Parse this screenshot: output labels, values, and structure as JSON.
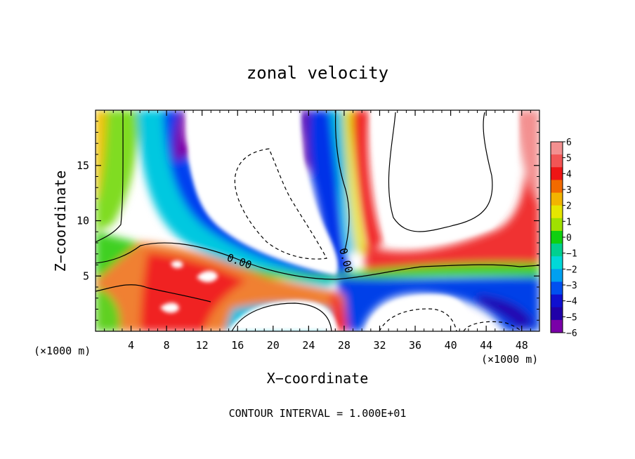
{
  "chart_data": {
    "type": "heatmap",
    "title": "zonal velocity",
    "xlabel": "X−coordinate",
    "ylabel": "Z−coordinate",
    "x_unit": "(×1000 m)",
    "y_unit": "(×1000 m)",
    "xlim": [
      0,
      50
    ],
    "ylim": [
      0,
      20
    ],
    "x_ticks": [
      "4",
      "8",
      "12",
      "16",
      "20",
      "24",
      "28",
      "32",
      "36",
      "40",
      "44",
      "48"
    ],
    "y_ticks": [
      "5",
      "10",
      "15"
    ],
    "colorbar": {
      "min": -6,
      "max": 6,
      "tick_labels": [
        "6",
        "5",
        "4",
        "3",
        "2",
        "1",
        "0",
        "−1",
        "−2",
        "−3",
        "−4",
        "−5",
        "−6"
      ],
      "colors": [
        "#f39090",
        "#f25555",
        "#ee1515",
        "#f26a00",
        "#f2b400",
        "#e6e600",
        "#a0e000",
        "#10d010",
        "#00d090",
        "#00d8d8",
        "#00a0f0",
        "#0050f0",
        "#1010d0",
        "#2000a8",
        "#7a00a8"
      ]
    },
    "contour_labels": [
      "0.00",
      "0.00"
    ],
    "footer": "CONTOUR INTERVAL = 1.000E+01",
    "grid": false
  }
}
